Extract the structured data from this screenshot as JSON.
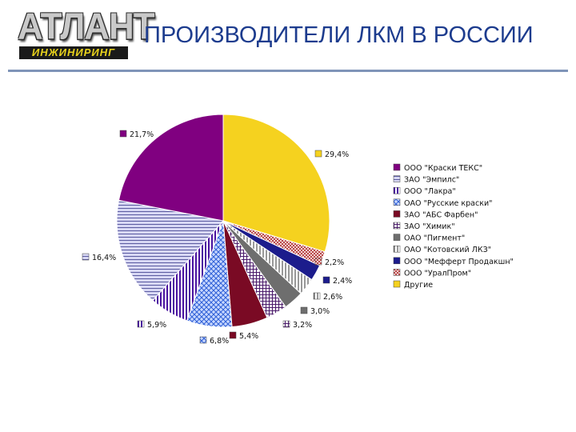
{
  "header": {
    "logo_main": "АТЛАНТ",
    "logo_sub": "ИНЖИНИРИНГ",
    "title": "ПРОИЗВОДИТЕЛИ ЛКМ В РОССИИ"
  },
  "chart_data": {
    "type": "pie",
    "legend_position": "right",
    "slices": [
      {
        "name": "Другие",
        "value_label": "29,4%",
        "value": 29.4,
        "pattern": "solid",
        "color": "#f5d21f"
      },
      {
        "name": "ООО \"УралПром\"",
        "value_label": "2,2%",
        "value": 2.2,
        "pattern": "checker",
        "color": "#b84a4a"
      },
      {
        "name": "ООО \"Мефферт Продакшн\"",
        "value_label": "2,4%",
        "value": 2.4,
        "pattern": "solid",
        "color": "#1c1c8c"
      },
      {
        "name": "ОАО \"Котовский ЛКЗ\"",
        "value_label": "2,6%",
        "value": 2.6,
        "pattern": "vlines",
        "color": "#333333"
      },
      {
        "name": "ОАО \"Пигмент\"",
        "value_label": "3,0%",
        "value": 3.0,
        "pattern": "solid",
        "color": "#6e6e6e"
      },
      {
        "name": "ЗАО \"Химик\"",
        "value_label": "3,2%",
        "value": 3.2,
        "pattern": "grid",
        "color": "#4a1a6a"
      },
      {
        "name": "ЗАО \"АБС Фарбен\"",
        "value_label": "5,4%",
        "value": 5.4,
        "pattern": "solid",
        "color": "#7a0a24"
      },
      {
        "name": "ОАО \"Русские краски\"",
        "value_label": "6,8%",
        "value": 6.8,
        "pattern": "crosshatch",
        "color": "#2f5fd6"
      },
      {
        "name": "ООО \"Лакра\"",
        "value_label": "5,9%",
        "value": 5.9,
        "pattern": "vlines",
        "color": "#4a14a0"
      },
      {
        "name": "ЗАО \"Эмпилс\"",
        "value_label": "16,4%",
        "value": 16.4,
        "pattern": "hlines",
        "color": "#5a5aa0"
      },
      {
        "name": "ООО \"Краски ТЕКС\"",
        "value_label": "21,7%",
        "value": 21.7,
        "pattern": "solid",
        "color": "#800080"
      }
    ],
    "legend_order": [
      "ООО \"Краски ТЕКС\"",
      "ЗАО \"Эмпилс\"",
      "ООО \"Лакра\"",
      "ОАО \"Русские краски\"",
      "ЗАО \"АБС Фарбен\"",
      "ЗАО \"Химик\"",
      "ОАО \"Пигмент\"",
      "ОАО \"Котовский ЛКЗ\"",
      "ООО \"Мефферт Продакшн\"",
      "ООО \"УралПром\"",
      "Другие"
    ]
  }
}
